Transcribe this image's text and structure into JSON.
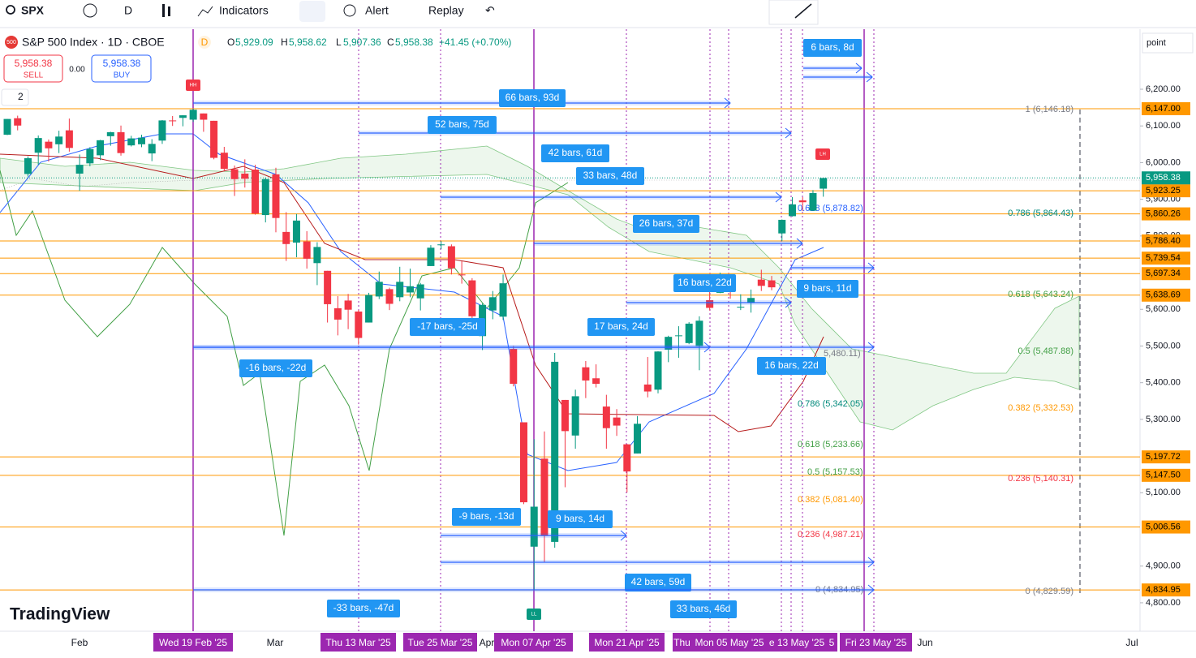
{
  "toolbar": {
    "symbol": "SPX",
    "interval": "D",
    "indicators": "Indicators",
    "alert": "Alert",
    "replay": "Replay"
  },
  "legend": {
    "badge": "500",
    "title": "S&P 500 Index · 1D · CBOE",
    "flag": "D",
    "o_key": "O",
    "o": "5,929.09",
    "h_key": "H",
    "h": "5,958.62",
    "l_key": "L",
    "l": "5,907.36",
    "c_key": "C",
    "c": "5,958.38",
    "change": "+41.45 (+0.70%)",
    "sell_price": "5,958.38",
    "sell": "SELL",
    "spread": "0.00",
    "buy_price": "5,958.38",
    "buy": "BUY",
    "count": "2"
  },
  "scale_mode": "point",
  "chart": {
    "candles": [
      [
        6076,
        6119,
        6075,
        6119
      ],
      [
        6121,
        6128,
        6088,
        6101
      ],
      [
        5969,
        6017,
        5962,
        6012
      ],
      [
        6027,
        6074,
        5994,
        6067
      ],
      [
        6057,
        6063,
        6003,
        6039
      ],
      [
        6050,
        6087,
        6026,
        6071
      ],
      [
        6088,
        6120,
        6030,
        6040
      ],
      [
        5970,
        6022,
        5923,
        5994
      ],
      [
        5998,
        6042,
        5990,
        6037
      ],
      [
        6020,
        6062,
        6007,
        6061
      ],
      [
        6072,
        6084,
        6046,
        6083
      ],
      [
        6083,
        6101,
        6019,
        6026
      ],
      [
        6047,
        6073,
        6044,
        6066
      ],
      [
        6050,
        6076,
        6042,
        6068
      ],
      [
        6025,
        6064,
        6004,
        6051
      ],
      [
        6060,
        6116,
        6051,
        6115
      ],
      [
        6115,
        6127,
        6100,
        6114
      ],
      [
        6122,
        6129,
        6099,
        6129
      ],
      [
        6117,
        6147,
        6111,
        6144
      ],
      [
        6134,
        6134,
        6084,
        6117
      ],
      [
        6114,
        6114,
        6009,
        6013
      ],
      [
        6027,
        6043,
        5977,
        5983
      ],
      [
        5982,
        5992,
        5909,
        5955
      ],
      [
        5970,
        6009,
        5932,
        5956
      ],
      [
        5981,
        5994,
        5858,
        5861
      ],
      [
        5857,
        5959,
        5837,
        5955
      ],
      [
        5968,
        5986,
        5810,
        5849
      ],
      [
        5811,
        5865,
        5732,
        5778
      ],
      [
        5782,
        5860,
        5742,
        5842
      ],
      [
        5785,
        5813,
        5711,
        5738
      ],
      [
        5726,
        5783,
        5666,
        5770
      ],
      [
        5705,
        5705,
        5564,
        5614
      ],
      [
        5603,
        5636,
        5529,
        5572
      ],
      [
        5624,
        5642,
        5546,
        5599
      ],
      [
        5594,
        5598,
        5504,
        5522
      ],
      [
        5564,
        5645,
        5564,
        5639
      ],
      [
        5635,
        5703,
        5628,
        5675
      ],
      [
        5655,
        5659,
        5598,
        5615
      ],
      [
        5633,
        5716,
        5622,
        5675
      ],
      [
        5646,
        5711,
        5633,
        5663
      ],
      [
        5630,
        5672,
        5597,
        5668
      ],
      [
        5718,
        5775,
        5718,
        5768
      ],
      [
        5775,
        5786,
        5764,
        5777
      ],
      [
        5772,
        5777,
        5695,
        5712
      ],
      [
        5695,
        5732,
        5670,
        5693
      ],
      [
        5679,
        5685,
        5572,
        5581
      ],
      [
        5527,
        5616,
        5489,
        5612
      ],
      [
        5597,
        5650,
        5573,
        5633
      ],
      [
        5580,
        5695,
        5571,
        5671
      ],
      [
        5492,
        5500,
        5390,
        5397
      ],
      [
        5292,
        5292,
        5069,
        5074
      ],
      [
        4953,
        5246,
        4835,
        5062
      ],
      [
        5193,
        5267,
        4910,
        4982
      ],
      [
        4966,
        5481,
        4950,
        5457
      ],
      [
        5353,
        5353,
        5115,
        5268
      ],
      [
        5256,
        5381,
        5220,
        5363
      ],
      [
        5442,
        5459,
        5358,
        5406
      ],
      [
        5412,
        5450,
        5387,
        5397
      ],
      [
        5335,
        5367,
        5220,
        5276
      ],
      [
        5305,
        5328,
        5255,
        5283
      ],
      [
        5232,
        5233,
        5101,
        5158
      ],
      [
        5207,
        5309,
        5207,
        5288
      ],
      [
        5395,
        5470,
        5360,
        5376
      ],
      [
        5381,
        5486,
        5371,
        5485
      ],
      [
        5490,
        5528,
        5456,
        5525
      ],
      [
        5529,
        5554,
        5468,
        5529
      ],
      [
        5508,
        5565,
        5505,
        5561
      ],
      [
        5500,
        5581,
        5434,
        5569
      ],
      [
        5625,
        5659,
        5597,
        5604
      ],
      [
        5645,
        5700,
        5644,
        5686
      ],
      [
        5655,
        5683,
        5629,
        5650
      ],
      [
        5606,
        5641,
        5598,
        5607
      ],
      [
        5617,
        5654,
        5591,
        5631
      ],
      [
        5681,
        5708,
        5650,
        5664
      ],
      [
        5679,
        5691,
        5652,
        5660
      ],
      [
        5807,
        5845,
        5786,
        5844
      ],
      [
        5854,
        5906,
        5853,
        5886
      ],
      [
        5897,
        5906,
        5868,
        5892
      ],
      [
        5869,
        5925,
        5868,
        5917
      ],
      [
        5929,
        5959,
        5907,
        5958
      ]
    ],
    "yticks": [
      {
        "value": 6200,
        "label": "6,200.00"
      },
      {
        "value": 6100,
        "label": "6,100.00"
      },
      {
        "value": 6000,
        "label": "6,000.00"
      },
      {
        "value": 5900,
        "label": "5,900.00"
      },
      {
        "value": 5800,
        "label": "5,800.00"
      },
      {
        "value": 5600,
        "label": "5,600.00"
      },
      {
        "value": 5500,
        "label": "5,500.00"
      },
      {
        "value": 5400,
        "label": "5,400.00"
      },
      {
        "value": 5300,
        "label": "5,300.00"
      },
      {
        "value": 5100,
        "label": "5,100.00"
      },
      {
        "value": 4900,
        "label": "4,900.00"
      },
      {
        "value": 4800,
        "label": "4,800.00"
      }
    ],
    "price_lines": [
      {
        "value": 6147,
        "label": "6,147.00"
      },
      {
        "value": 5923.25,
        "label": "5,923.25"
      },
      {
        "value": 5860.26,
        "label": "5,860.26"
      },
      {
        "value": 5786.4,
        "label": "5,786.40"
      },
      {
        "value": 5739.54,
        "label": "5,739.54"
      },
      {
        "value": 5697.34,
        "label": "5,697.34"
      },
      {
        "value": 5638.69,
        "label": "5,638.69"
      },
      {
        "value": 5197.72,
        "label": "5,197.72"
      },
      {
        "value": 5147.5,
        "label": "5,147.50"
      },
      {
        "value": 5006.56,
        "label": "5,006.56"
      },
      {
        "value": 4834.95,
        "label": "4,834.95"
      }
    ],
    "last_price": {
      "value": 5958.38,
      "label": "5,958.38"
    },
    "markers": [
      "HH",
      "LH",
      "LL"
    ],
    "fib_right": [
      "1 (6,146.18)",
      "0.786 (5,864.43)",
      "0.618 (5,643.24)",
      "0.5 (5,487.88)",
      "0.382 (5,332.53)",
      "0.236 (5,140.31)",
      "0 (4,829.59)"
    ],
    "fib_left": [
      "0.618 (5,878.82)",
      "5,480.11)",
      "0.786 (5,342.05)",
      "0.618 (5,233.66)",
      "0.5 (5,157.53)",
      "0.382 (5,081.40)",
      "0.236 (4,987.21)",
      "0 (4,834.95)"
    ],
    "measures": [
      "6 bars, 8d",
      "66 bars, 93d",
      "52 bars, 75d",
      "42 bars, 61d",
      "33 bars, 48d",
      "26 bars, 37d",
      "16 bars, 22d",
      "9 bars, 11d",
      "17 bars, 24d",
      "-17 bars, -25d",
      "-16 bars, -22d",
      "16 bars, 22d",
      "-9 bars, -13d",
      "9 bars, 14d",
      "42 bars, 59d",
      "-33 bars, -47d",
      "33 bars, 46d"
    ]
  },
  "time_axis": {
    "months": [
      "Feb",
      "Mar",
      "Apr",
      "Jun",
      "Jul"
    ],
    "highlights": [
      "Wed 19 Feb '25",
      "Thu 13 Mar '25",
      "Tue 25 Mar '25",
      "Mon 07 Apr '25",
      "Mon 21 Apr '25",
      "Thu",
      "Mon 05 May '25",
      "e 13 May '25",
      "5",
      "Fri 23 May '25"
    ]
  },
  "watermark": "TradingView"
}
